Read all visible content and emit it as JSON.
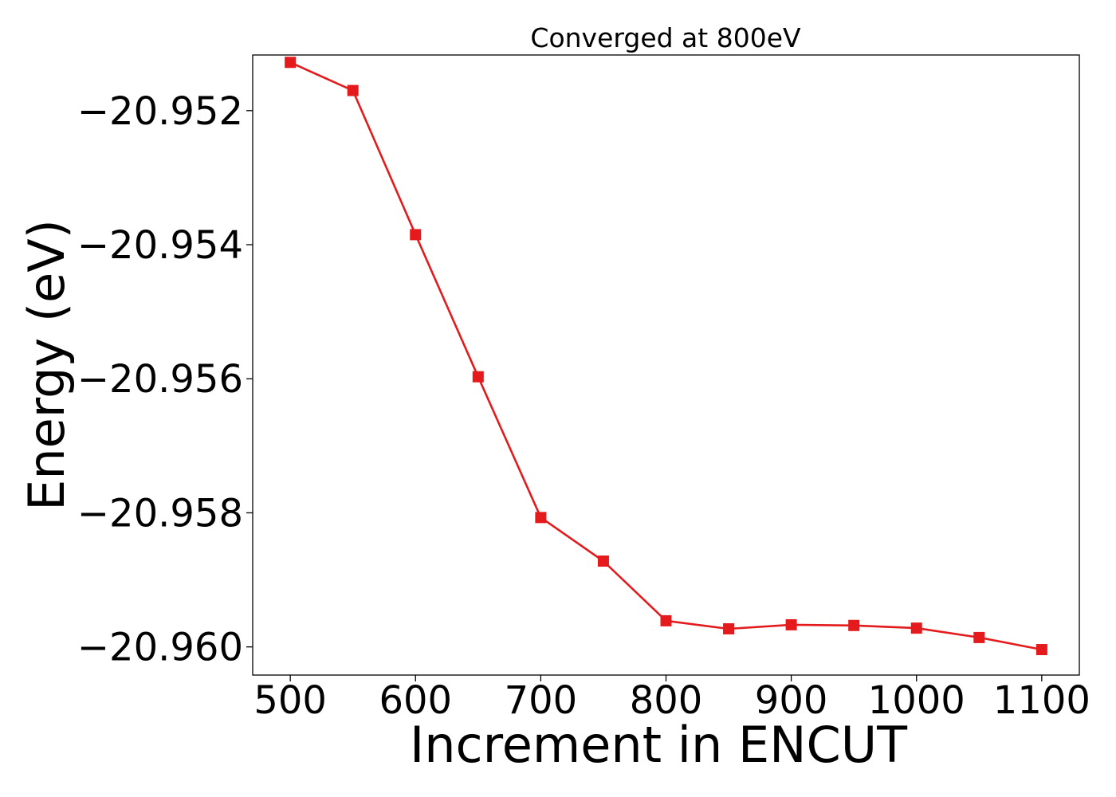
{
  "chart_data": {
    "type": "line",
    "title": "Converged at 800eV",
    "xlabel": "Increment in ENCUT",
    "ylabel": "Energy (eV)",
    "xlim": [
      470,
      1130
    ],
    "ylim": [
      -20.96042,
      -20.95117
    ],
    "x_ticks": [
      500,
      600,
      700,
      800,
      900,
      1000,
      1100
    ],
    "y_ticks": [
      -20.952,
      -20.954,
      -20.956,
      -20.958,
      -20.96
    ],
    "y_tick_labels": [
      "−20.952",
      "−20.954",
      "−20.956",
      "−20.958",
      "−20.960"
    ],
    "grid": false,
    "series": [
      {
        "color": "#e41a1c",
        "marker": "square",
        "x": [
          500,
          550,
          600,
          650,
          700,
          750,
          800,
          850,
          900,
          950,
          1000,
          1050,
          1100
        ],
        "y": [
          -20.95128,
          -20.9517,
          -20.95385,
          -20.95597,
          -20.95807,
          -20.95872,
          -20.95961,
          -20.95973,
          -20.95967,
          -20.95968,
          -20.95972,
          -20.95986,
          -20.96004
        ]
      }
    ]
  }
}
